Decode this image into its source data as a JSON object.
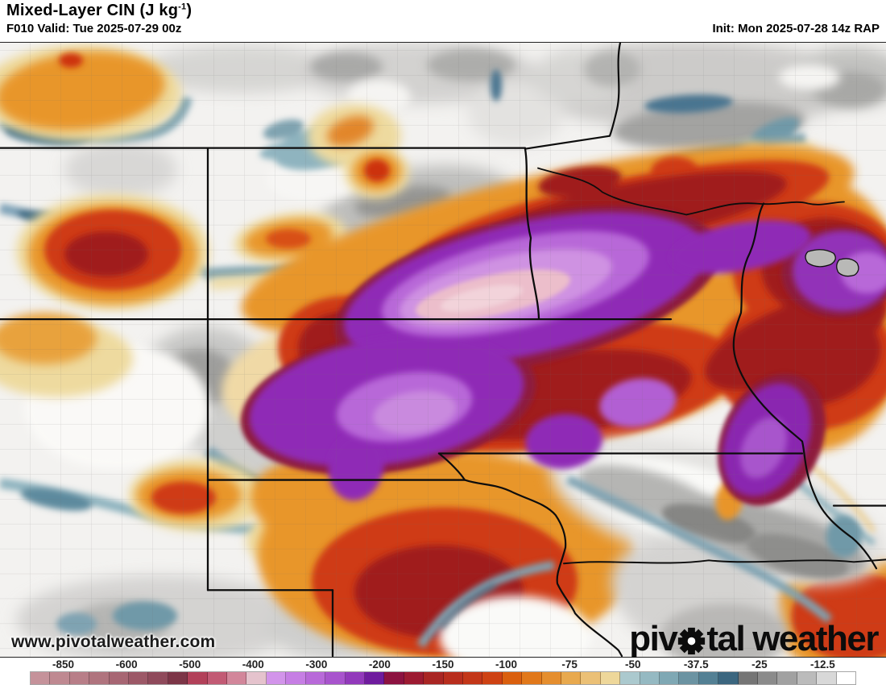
{
  "header": {
    "title_main": "Mixed-Layer CIN (J kg",
    "title_sup": "-1",
    "title_end": ")",
    "valid": "F010 Valid: Tue 2025-07-29 00z",
    "init": "Init: Mon 2025-07-28 14z RAP"
  },
  "map": {
    "watermark": "www.pivotalweather.com",
    "logo_part1": "piv",
    "logo_part2": "tal",
    "logo_part3": "weather",
    "palette": {
      "background": "#f3f2f0",
      "gray": "#a9a9a7",
      "steel_blue": "#7fa3b0",
      "dark_blue": "#47748c",
      "tan": "#eeda9f",
      "orange": "#e8962c",
      "red": "#cf3a16",
      "dark_red": "#a01e1e",
      "maroon": "#8e1d3c",
      "purple": "#8f2cb6",
      "lavender": "#cf92e2",
      "pink_core": "#ecc3cf"
    }
  },
  "colorbar": {
    "labels": [
      "-850",
      "-600",
      "-500",
      "-400",
      "-300",
      "-200",
      "-150",
      "-100",
      "-75",
      "-50",
      "-37.5",
      "-25",
      "-12.5"
    ],
    "segments": [
      "#c5929a",
      "#bf8991",
      "#b87e88",
      "#b0747e",
      "#a76673",
      "#9c5867",
      "#8f4a5b",
      "#7c3547",
      "#b24059",
      "#c25a74",
      "#d2869a",
      "#e5c3cd",
      "#d294ea",
      "#c67ee4",
      "#b869d9",
      "#a854cd",
      "#9239bb",
      "#6f1b9e",
      "#8c1240",
      "#9c1a31",
      "#a92523",
      "#b82d1d",
      "#c33618",
      "#ce4213",
      "#da5f0e",
      "#e1781a",
      "#e58e2e",
      "#e8a94e",
      "#ebc076",
      "#eed79a",
      "#abc9ce",
      "#95b9c2",
      "#7fa8b4",
      "#6b93a2",
      "#538094",
      "#3b667f",
      "#757575",
      "#8b8b8b",
      "#a1a1a1",
      "#bbbbbb",
      "#d8d8d8",
      "#ffffff"
    ]
  }
}
